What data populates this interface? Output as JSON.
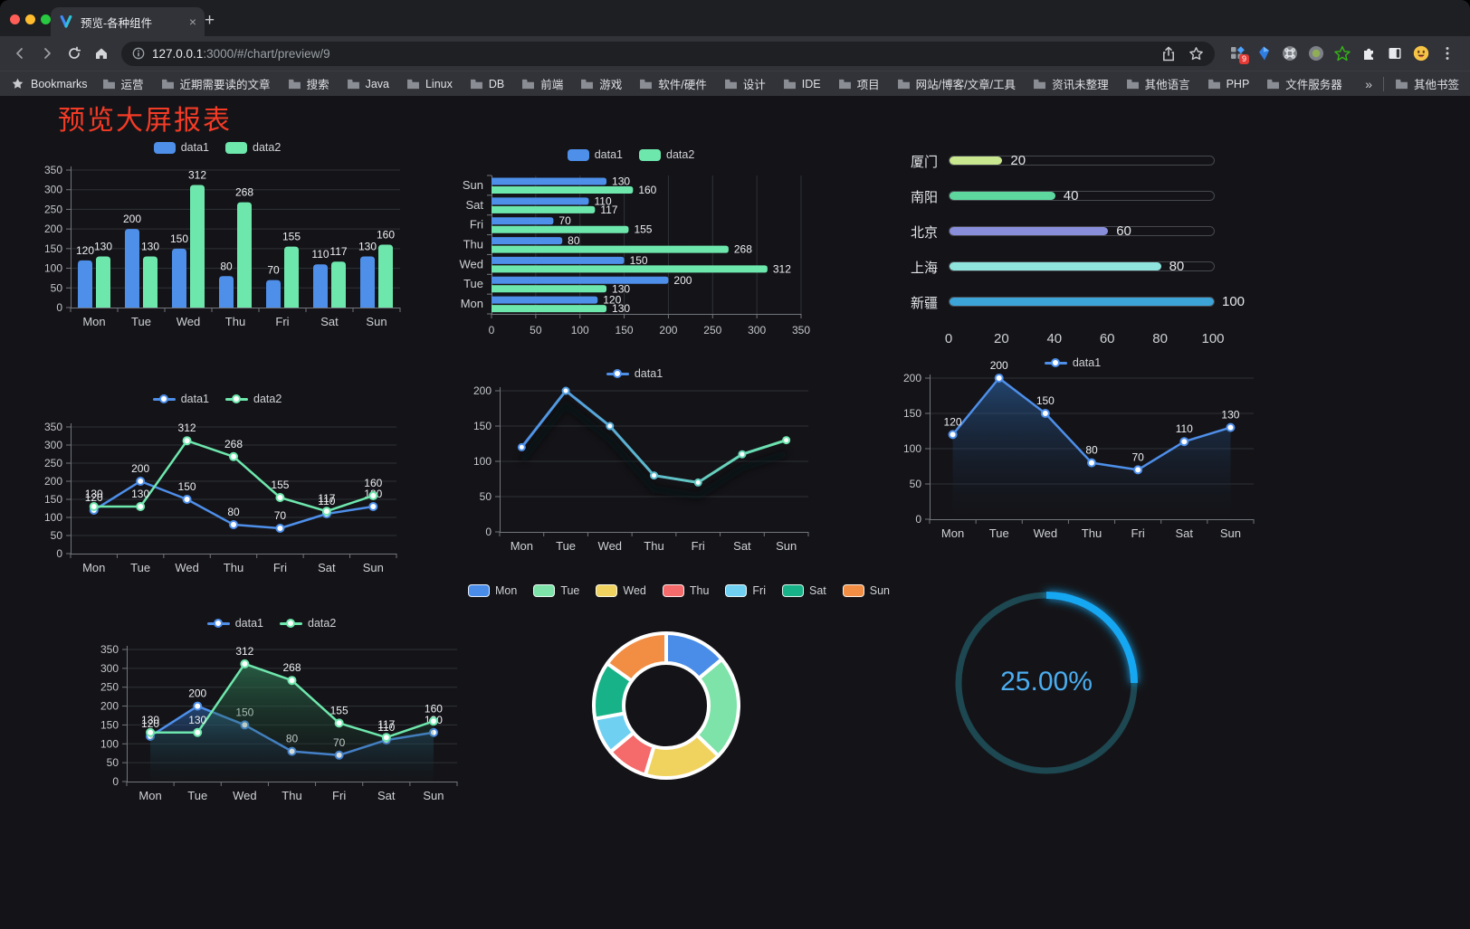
{
  "browser": {
    "window_controls": [
      "close",
      "minimize",
      "zoom"
    ],
    "tab": {
      "title": "预览-各种组件"
    },
    "close_tab": "×",
    "new_tab_button": "+",
    "address": {
      "host": "127.0.0.1",
      "rest": ":3000/#/chart/preview/9"
    },
    "extensions_badge": "9",
    "icons": {
      "nav": [
        "back-icon",
        "forward-icon",
        "reload-icon",
        "home-icon"
      ],
      "address": [
        "info-icon",
        "share-icon",
        "bookmark-star-icon"
      ],
      "extensions": [
        "extensions-grid-icon",
        "kite-icon",
        "command-circle-icon",
        "record-circle-icon",
        "green-star-icon",
        "puzzle-icon",
        "split-screen-icon",
        "avatar-emoji",
        "menu-dots-icon"
      ]
    },
    "bookmarks_bar": {
      "bookmarks_label": "Bookmarks",
      "folders": [
        "运营",
        "近期需要读的文章",
        "搜索",
        "Java",
        "Linux",
        "DB",
        "前端",
        "游戏",
        "软件/硬件",
        "设计",
        "IDE",
        "项目",
        "网站/博客/文章/工具",
        "资讯未整理",
        "其他语言",
        "PHP",
        "文件服务器"
      ],
      "overflow": "»",
      "other": "其他书签"
    }
  },
  "page": {
    "title": "预览大屏报表",
    "title_color": "#f43b26",
    "background": "#141418"
  },
  "chart_data": [
    {
      "id": "grouped-bar",
      "type": "bar",
      "categories": [
        "Mon",
        "Tue",
        "Wed",
        "Thu",
        "Fri",
        "Sat",
        "Sun"
      ],
      "series": [
        {
          "name": "data1",
          "color": "#4e8fea",
          "values": [
            120,
            200,
            150,
            80,
            70,
            110,
            130
          ]
        },
        {
          "name": "data2",
          "color": "#6ee7ad",
          "values": [
            130,
            130,
            312,
            268,
            155,
            117,
            160
          ]
        }
      ],
      "ylim": [
        0,
        350
      ],
      "ystep": 50,
      "grid": true,
      "legend_position": "top",
      "show_labels": true
    },
    {
      "id": "grouped-hbar",
      "type": "bar",
      "orientation": "horizontal",
      "categories": [
        "Mon",
        "Tue",
        "Wed",
        "Thu",
        "Fri",
        "Sat",
        "Sun"
      ],
      "category_order_top_to_bottom": [
        "Sun",
        "Sat",
        "Fri",
        "Thu",
        "Wed",
        "Tue",
        "Mon"
      ],
      "series": [
        {
          "name": "data1",
          "color": "#4e8fea",
          "values": [
            120,
            200,
            150,
            80,
            70,
            110,
            130
          ]
        },
        {
          "name": "data2",
          "color": "#6ee7ad",
          "values": [
            130,
            130,
            312,
            268,
            155,
            117,
            160
          ]
        }
      ],
      "xlim": [
        0,
        350
      ],
      "xstep": 50,
      "grid": true,
      "legend_position": "top",
      "show_labels": true
    },
    {
      "id": "city-progress",
      "type": "bar",
      "orientation": "horizontal",
      "items": [
        {
          "label": "厦门",
          "value": 20,
          "color": "#c8e78e"
        },
        {
          "label": "南阳",
          "value": 40,
          "color": "#5ed79f"
        },
        {
          "label": "北京",
          "value": 60,
          "color": "#898edb"
        },
        {
          "label": "上海",
          "value": 80,
          "color": "#8fe5de"
        },
        {
          "label": "新疆",
          "value": 100,
          "color": "#3da4d8"
        }
      ],
      "xlim": [
        0,
        100
      ],
      "xticks": [
        0,
        20,
        40,
        60,
        80,
        100
      ]
    },
    {
      "id": "dual-line",
      "type": "line",
      "categories": [
        "Mon",
        "Tue",
        "Wed",
        "Thu",
        "Fri",
        "Sat",
        "Sun"
      ],
      "series": [
        {
          "name": "data1",
          "color": "#4e8fea",
          "values": [
            120,
            200,
            150,
            80,
            70,
            110,
            130
          ]
        },
        {
          "name": "data2",
          "color": "#6ee7ad",
          "values": [
            130,
            130,
            312,
            268,
            155,
            117,
            160
          ]
        }
      ],
      "ylim": [
        0,
        350
      ],
      "ystep": 50,
      "legend_position": "top",
      "show_labels": true
    },
    {
      "id": "gradient-line",
      "type": "line",
      "categories": [
        "Mon",
        "Tue",
        "Wed",
        "Thu",
        "Fri",
        "Sat",
        "Sun"
      ],
      "series": [
        {
          "name": "data1",
          "color_start": "#4e8fea",
          "color_end": "#6ee7ad",
          "values": [
            120,
            200,
            150,
            80,
            70,
            110,
            130
          ]
        }
      ],
      "ylim": [
        0,
        200
      ],
      "ystep": 50,
      "legend_position": "top",
      "show_labels": false,
      "shadow": true
    },
    {
      "id": "single-area",
      "type": "area",
      "categories": [
        "Mon",
        "Tue",
        "Wed",
        "Thu",
        "Fri",
        "Sat",
        "Sun"
      ],
      "series": [
        {
          "name": "data1",
          "color": "#4e8fea",
          "values": [
            120,
            200,
            150,
            80,
            70,
            110,
            130
          ]
        }
      ],
      "ylim": [
        0,
        200
      ],
      "ystep": 50,
      "legend_position": "top",
      "show_labels": true
    },
    {
      "id": "dual-area",
      "type": "area",
      "categories": [
        "Mon",
        "Tue",
        "Wed",
        "Thu",
        "Fri",
        "Sat",
        "Sun"
      ],
      "series": [
        {
          "name": "data1",
          "color": "#4e8fea",
          "values": [
            120,
            200,
            150,
            80,
            70,
            110,
            130
          ]
        },
        {
          "name": "data2",
          "color": "#6ee7ad",
          "values": [
            130,
            130,
            312,
            268,
            155,
            117,
            160
          ]
        }
      ],
      "ylim": [
        0,
        350
      ],
      "ystep": 50,
      "legend_position": "top",
      "show_labels": true
    },
    {
      "id": "donut",
      "type": "pie",
      "inner_radius_ratio": 0.59,
      "items": [
        {
          "label": "Mon",
          "value": 120,
          "color": "#4a8de8"
        },
        {
          "label": "Tue",
          "value": 200,
          "color": "#7de3a8"
        },
        {
          "label": "Wed",
          "value": 150,
          "color": "#f0d35e"
        },
        {
          "label": "Thu",
          "value": 80,
          "color": "#f56a6a"
        },
        {
          "label": "Fri",
          "value": 70,
          "color": "#70d0f2"
        },
        {
          "label": "Sat",
          "value": 110,
          "color": "#17b287"
        },
        {
          "label": "Sun",
          "value": 130,
          "color": "#f28e43"
        }
      ],
      "legend_position": "top"
    },
    {
      "id": "gauge",
      "type": "gauge",
      "value": 25,
      "label": "25.00%",
      "color": "#19a7f2",
      "track_color": "#1d4751",
      "text_color": "#4badf0"
    }
  ]
}
